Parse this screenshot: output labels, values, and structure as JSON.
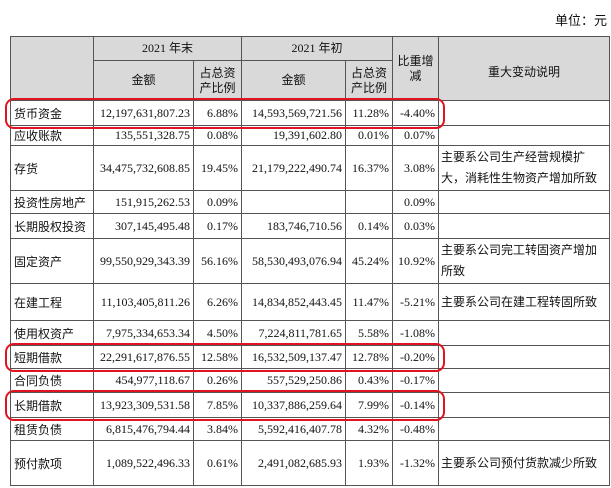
{
  "unit": "单位：元",
  "header": {
    "item": "",
    "end_year": "2021 年末",
    "begin_year": "2021 年初",
    "amount_end": "金额",
    "ratio_end": "占总资产比例",
    "amount_begin": "金额",
    "ratio_begin": "占总资产比例",
    "change": "比重增减",
    "note": "重大变动说明"
  },
  "highlight_color": "#e0141e",
  "rows": [
    {
      "item": "货币资金",
      "end_amount": "12,197,631,807.23",
      "end_ratio": "6.88%",
      "begin_amount": "14,593,569,721.56",
      "begin_ratio": "11.28%",
      "change": "-4.40%",
      "highlight": true
    },
    {
      "item": "应收账款",
      "end_amount": "135,551,328.75",
      "end_ratio": "0.08%",
      "begin_amount": "19,391,602.80",
      "begin_ratio": "0.01%",
      "change": "0.07%"
    },
    {
      "item": "存货",
      "end_amount": "34,475,732,608.85",
      "end_ratio": "19.45%",
      "begin_amount": "21,179,222,490.74",
      "begin_ratio": "16.37%",
      "change": "3.08%",
      "note": "主要系公司生产经营规模扩大，消耗性生物资产增加所致"
    },
    {
      "item": "投资性房地产",
      "end_amount": "151,915,262.53",
      "end_ratio": "0.09%",
      "change": "0.09%"
    },
    {
      "item": "长期股权投资",
      "end_amount": "307,145,495.48",
      "end_ratio": "0.17%",
      "begin_amount": "183,746,710.56",
      "begin_ratio": "0.14%",
      "change": "0.03%"
    },
    {
      "item": "固定资产",
      "end_amount": "99,550,929,343.39",
      "end_ratio": "56.16%",
      "begin_amount": "58,530,493,076.94",
      "begin_ratio": "45.24%",
      "change": "10.92%",
      "note": "主要系公司完工转固资产增加所致"
    },
    {
      "item": "在建工程",
      "end_amount": "11,103,405,811.26",
      "end_ratio": "6.26%",
      "begin_amount": "14,834,852,443.45",
      "begin_ratio": "11.47%",
      "change": "-5.21%",
      "note": "主要系公司在建工程转固所致"
    },
    {
      "item": "使用权资产",
      "end_amount": "7,975,334,653.34",
      "end_ratio": "4.50%",
      "begin_amount": "7,224,811,781.65",
      "begin_ratio": "5.58%",
      "change": "-1.08%"
    },
    {
      "item": "短期借款",
      "end_amount": "22,291,617,876.55",
      "end_ratio": "12.58%",
      "begin_amount": "16,532,509,137.47",
      "begin_ratio": "12.78%",
      "change": "-0.20%",
      "highlight": true
    },
    {
      "item": "合同负债",
      "end_amount": "454,977,118.67",
      "end_ratio": "0.26%",
      "begin_amount": "557,529,250.86",
      "begin_ratio": "0.43%",
      "change": "-0.17%"
    },
    {
      "item": "长期借款",
      "end_amount": "13,923,309,531.58",
      "end_ratio": "7.85%",
      "begin_amount": "10,337,886,259.64",
      "begin_ratio": "7.99%",
      "change": "-0.14%",
      "highlight": true
    },
    {
      "item": "租赁负债",
      "end_amount": "6,815,476,794.44",
      "end_ratio": "3.84%",
      "begin_amount": "5,592,416,407.78",
      "begin_ratio": "4.32%",
      "change": "-0.48%"
    },
    {
      "item": "预付款项",
      "end_amount": "1,089,522,496.33",
      "end_ratio": "0.61%",
      "begin_amount": "2,491,082,685.93",
      "begin_ratio": "1.93%",
      "change": "-1.32%",
      "note": "主要系公司预付货款减少所致"
    }
  ]
}
